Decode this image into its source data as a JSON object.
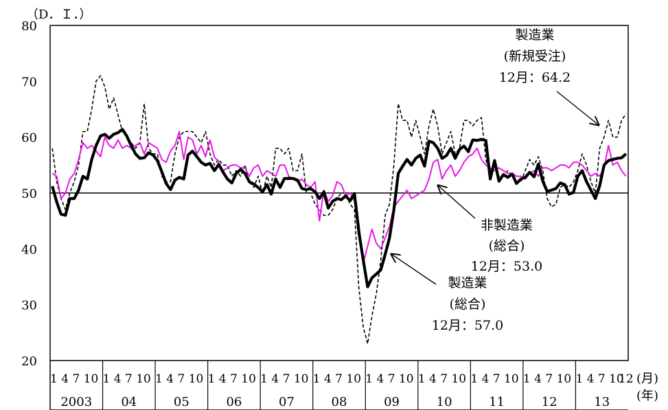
{
  "chart_data": {
    "type": "line",
    "ylabel": "（D．Ｉ．）",
    "ylim": [
      20,
      80
    ],
    "yticks": [
      20,
      30,
      40,
      50,
      60,
      70,
      80
    ],
    "reference_line": 50,
    "month_tick_label": "1 4 7 10",
    "month_tick_values": [
      1,
      4,
      7,
      10
    ],
    "years": [
      "2003",
      "04",
      "05",
      "06",
      "07",
      "08",
      "09",
      "10",
      "11",
      "12",
      "13"
    ],
    "last_tick_label": "12",
    "x_unit_month": "(月)",
    "x_unit_year": "(年)",
    "x_start": "2003-01",
    "x_end": "2013-12",
    "grid": false,
    "series": [
      {
        "name": "製造業（総合）",
        "color": "#000000",
        "style": "thick",
        "values": [
          51.2,
          48.4,
          46.2,
          46.0,
          49.0,
          49.0,
          50.5,
          53.0,
          52.5,
          56.0,
          58.5,
          60.2,
          60.5,
          59.8,
          60.5,
          60.8,
          61.4,
          60.2,
          58.5,
          57.0,
          56.2,
          56.3,
          57.2,
          56.8,
          55.8,
          53.8,
          51.7,
          50.6,
          52.3,
          52.8,
          52.5,
          56.8,
          57.5,
          56.5,
          55.5,
          55.0,
          55.3,
          54.0,
          55.1,
          53.7,
          52.5,
          51.8,
          53.5,
          54.2,
          53.5,
          52.0,
          51.6,
          51.0,
          50.2,
          51.5,
          49.8,
          52.5,
          51.0,
          52.6,
          52.6,
          52.6,
          52.3,
          50.8,
          50.6,
          50.8,
          50.2,
          49.0,
          50.2,
          47.3,
          48.5,
          49.0,
          48.8,
          49.5,
          48.6,
          49.9,
          43.0,
          38.0,
          33.2,
          34.8,
          35.5,
          36.2,
          39.0,
          42.0,
          47.0,
          53.5,
          54.8,
          56.0,
          55.0,
          56.2,
          56.8,
          54.8,
          59.3,
          59.0,
          58.0,
          56.2,
          56.7,
          58.0,
          56.2,
          57.8,
          58.4,
          57.4,
          59.5,
          59.4,
          59.6,
          59.4,
          52.5,
          55.8,
          52.1,
          53.3,
          52.8,
          53.4,
          51.7,
          52.5,
          52.8,
          53.7,
          52.9,
          55.2,
          52.1,
          50.3,
          50.5,
          50.8,
          51.8,
          51.5,
          49.8,
          50.1,
          53.0,
          54.0,
          52.0,
          50.5,
          49.0,
          51.3,
          55.0,
          55.8,
          56.0,
          56.2,
          56.3,
          57.0
        ]
      },
      {
        "name": "製造業（新規受注）",
        "color": "#000000",
        "style": "dashed",
        "values": [
          58.0,
          52.0,
          49.0,
          47.0,
          50.0,
          52.0,
          55.0,
          61.0,
          61.0,
          65.0,
          70.0,
          71.0,
          69.0,
          65.0,
          67.0,
          64.0,
          61.0,
          60.0,
          59.0,
          58.0,
          59.0,
          66.0,
          58.0,
          57.0,
          57.0,
          53.0,
          52.0,
          52.0,
          57.0,
          60.0,
          61.0,
          61.0,
          61.0,
          60.0,
          59.0,
          61.0,
          57.0,
          55.0,
          56.0,
          55.0,
          55.0,
          53.0,
          54.0,
          53.0,
          55.0,
          52.0,
          51.0,
          53.0,
          50.0,
          53.0,
          51.0,
          58.0,
          58.0,
          57.0,
          58.0,
          54.0,
          54.0,
          57.0,
          50.0,
          50.0,
          48.0,
          47.0,
          46.0,
          46.0,
          47.0,
          49.0,
          50.0,
          50.0,
          48.0,
          47.0,
          33.0,
          26.0,
          23.0,
          28.0,
          32.0,
          38.0,
          46.0,
          48.0,
          55.0,
          66.0,
          63.0,
          63.0,
          60.0,
          63.0,
          60.0,
          57.0,
          62.0,
          65.0,
          62.0,
          57.0,
          59.0,
          61.0,
          57.0,
          58.0,
          63.0,
          63.0,
          62.0,
          63.0,
          63.5,
          56.0,
          53.0,
          55.0,
          53.0,
          53.0,
          54.0,
          53.0,
          52.0,
          52.0,
          54.0,
          56.0,
          55.0,
          56.5,
          54.0,
          49.0,
          47.5,
          48.0,
          51.0,
          51.5,
          51.0,
          52.0,
          54.0,
          57.0,
          55.0,
          52.0,
          50.0,
          58.0,
          60.0,
          63.0,
          60.0,
          60.0,
          63.0,
          64.2
        ]
      },
      {
        "name": "非製造業（総合）",
        "color": "#e619e6",
        "style": "solid",
        "values": [
          53.5,
          53.0,
          49.0,
          50.0,
          52.5,
          53.5,
          56.0,
          59.0,
          58.0,
          58.5,
          57.5,
          56.5,
          60.0,
          58.5,
          58.0,
          59.5,
          58.0,
          58.5,
          58.0,
          58.5,
          59.0,
          57.0,
          59.0,
          58.5,
          58.0,
          56.0,
          55.5,
          57.5,
          58.5,
          61.0,
          56.0,
          60.0,
          59.5,
          57.0,
          58.5,
          56.5,
          59.5,
          56.5,
          55.5,
          54.0,
          54.5,
          55.0,
          55.0,
          54.5,
          54.5,
          53.0,
          54.5,
          55.0,
          53.0,
          54.0,
          53.5,
          53.0,
          55.0,
          55.0,
          53.0,
          52.5,
          52.0,
          52.5,
          51.5,
          51.0,
          52.0,
          45.0,
          50.5,
          48.5,
          49.5,
          52.0,
          51.5,
          49.5,
          50.0,
          48.5,
          44.5,
          37.5,
          40.5,
          43.5,
          41.0,
          40.0,
          42.0,
          44.0,
          47.5,
          48.5,
          49.5,
          50.5,
          49.0,
          49.5,
          50.0,
          50.5,
          52.5,
          55.5,
          56.0,
          52.5,
          54.0,
          55.0,
          53.0,
          54.0,
          55.5,
          56.5,
          57.0,
          58.0,
          56.0,
          55.0,
          54.5,
          54.0,
          54.5,
          54.0,
          53.5,
          53.5,
          53.0,
          53.0,
          52.5,
          53.5,
          54.0,
          53.0,
          54.5,
          54.5,
          54.0,
          54.5,
          55.0,
          55.0,
          54.5,
          55.5,
          55.5,
          55.0,
          54.0,
          53.0,
          53.5,
          53.0,
          54.5,
          58.5,
          55.0,
          55.5,
          54.0,
          53.0
        ]
      }
    ],
    "annotations": [
      {
        "lines": [
          "製造業",
          "(新規受注)",
          "12月：64.2"
        ]
      },
      {
        "lines": [
          "非製造業",
          "(総合)",
          "12月：53.0"
        ]
      },
      {
        "lines": [
          "製造業",
          "(総合)",
          "12月：57.0"
        ]
      }
    ]
  }
}
